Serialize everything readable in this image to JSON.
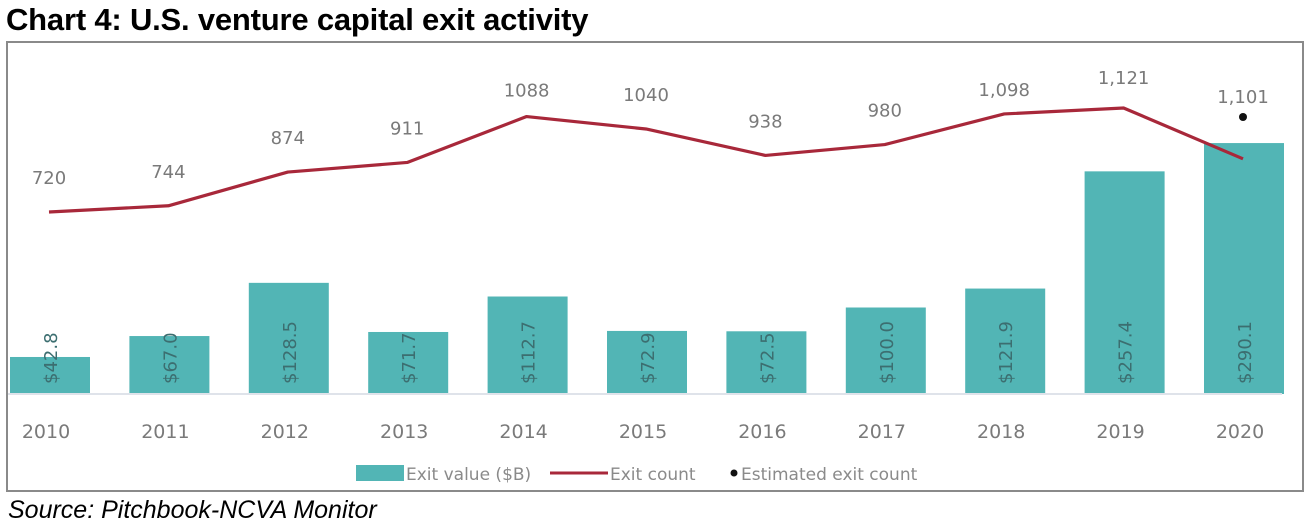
{
  "title": "Chart 4: U.S. venture capital exit activity",
  "source": "Source: Pitchbook-NCVA Monitor",
  "colors": {
    "bar": "#52b5b5",
    "line": "#a8283a",
    "estimate": "#111111",
    "text": "#7a7a7a",
    "baseline": "#dfe3ea"
  },
  "chart_data": {
    "type": "bar+line",
    "title": "Chart 4: U.S. venture capital exit activity",
    "xlabel": "",
    "ylabel": "",
    "categories": [
      "2010",
      "2011",
      "2012",
      "2013",
      "2014",
      "2015",
      "2016",
      "2017",
      "2018",
      "2019",
      "2020"
    ],
    "series": [
      {
        "name": "Exit value ($B)",
        "type": "bar",
        "values": [
          42.8,
          67.0,
          128.5,
          71.7,
          112.7,
          72.9,
          72.5,
          100.0,
          121.9,
          257.4,
          290.1
        ],
        "labels": [
          "$42.8",
          "$67.0",
          "$128.5",
          "$71.7",
          "$112.7",
          "$72.9",
          "$72.5",
          "$100.0",
          "$121.9",
          "$257.4",
          "$290.1"
        ],
        "ylim": [
          0,
          450
        ]
      },
      {
        "name": "Exit count",
        "type": "line",
        "values": [
          720,
          744,
          874,
          911,
          1088,
          1040,
          938,
          980,
          1098,
          1121,
          925
        ],
        "labels": [
          "720",
          "744",
          "874",
          "911",
          "1088",
          "1040",
          "938",
          "980",
          "1,098",
          "1,121",
          ""
        ],
        "ylim": [
          0,
          1540
        ]
      },
      {
        "name": "Estimated exit count",
        "type": "scatter",
        "category": "2020",
        "value": 1101,
        "label": "1,101"
      }
    ],
    "legend": [
      "Exit value ($B)",
      "Exit count",
      "Estimated exit count"
    ],
    "legend_position": "bottom",
    "grid": false
  }
}
